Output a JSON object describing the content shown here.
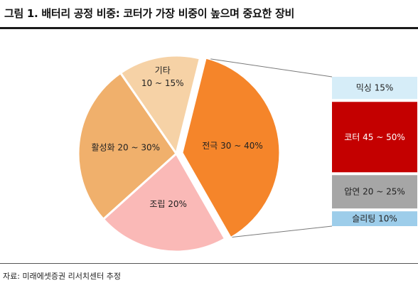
{
  "header": {
    "title": "그림 1. 배터리 공정 비중: 코터가 가장 비중이 높으며 중요한 장비"
  },
  "footer": {
    "source": "자료: 미래에셋증권 리서치센터 추정"
  },
  "chart_data": [
    {
      "type": "pie",
      "slices": [
        {
          "label": "전극 30 ~ 40%",
          "value": 35,
          "color": "#F5852A"
        },
        {
          "label": "조립 20%",
          "value": 20,
          "color": "#FAB9B7"
        },
        {
          "label": "활성화 20 ~ 30%",
          "value": 25,
          "color": "#F0B06C"
        },
        {
          "label": "기타",
          "label2": "10 ~ 15%",
          "value": 12.5,
          "color": "#F6D2A6"
        }
      ]
    },
    {
      "type": "bar",
      "stacked": true,
      "segments": [
        {
          "label": "믹싱 15%",
          "value": 15,
          "color": "#D6EDF8",
          "text_color": "#222222"
        },
        {
          "label": "코터 45 ~ 50%",
          "value": 47.5,
          "color": "#C40000",
          "text_color": "#FFFFFF"
        },
        {
          "label": "압연 20 ~ 25%",
          "value": 22.5,
          "color": "#A6A6A6",
          "text_color": "#222222"
        },
        {
          "label": "슬리팅 10%",
          "value": 10,
          "color": "#9DCDEA",
          "text_color": "#222222"
        }
      ]
    }
  ]
}
